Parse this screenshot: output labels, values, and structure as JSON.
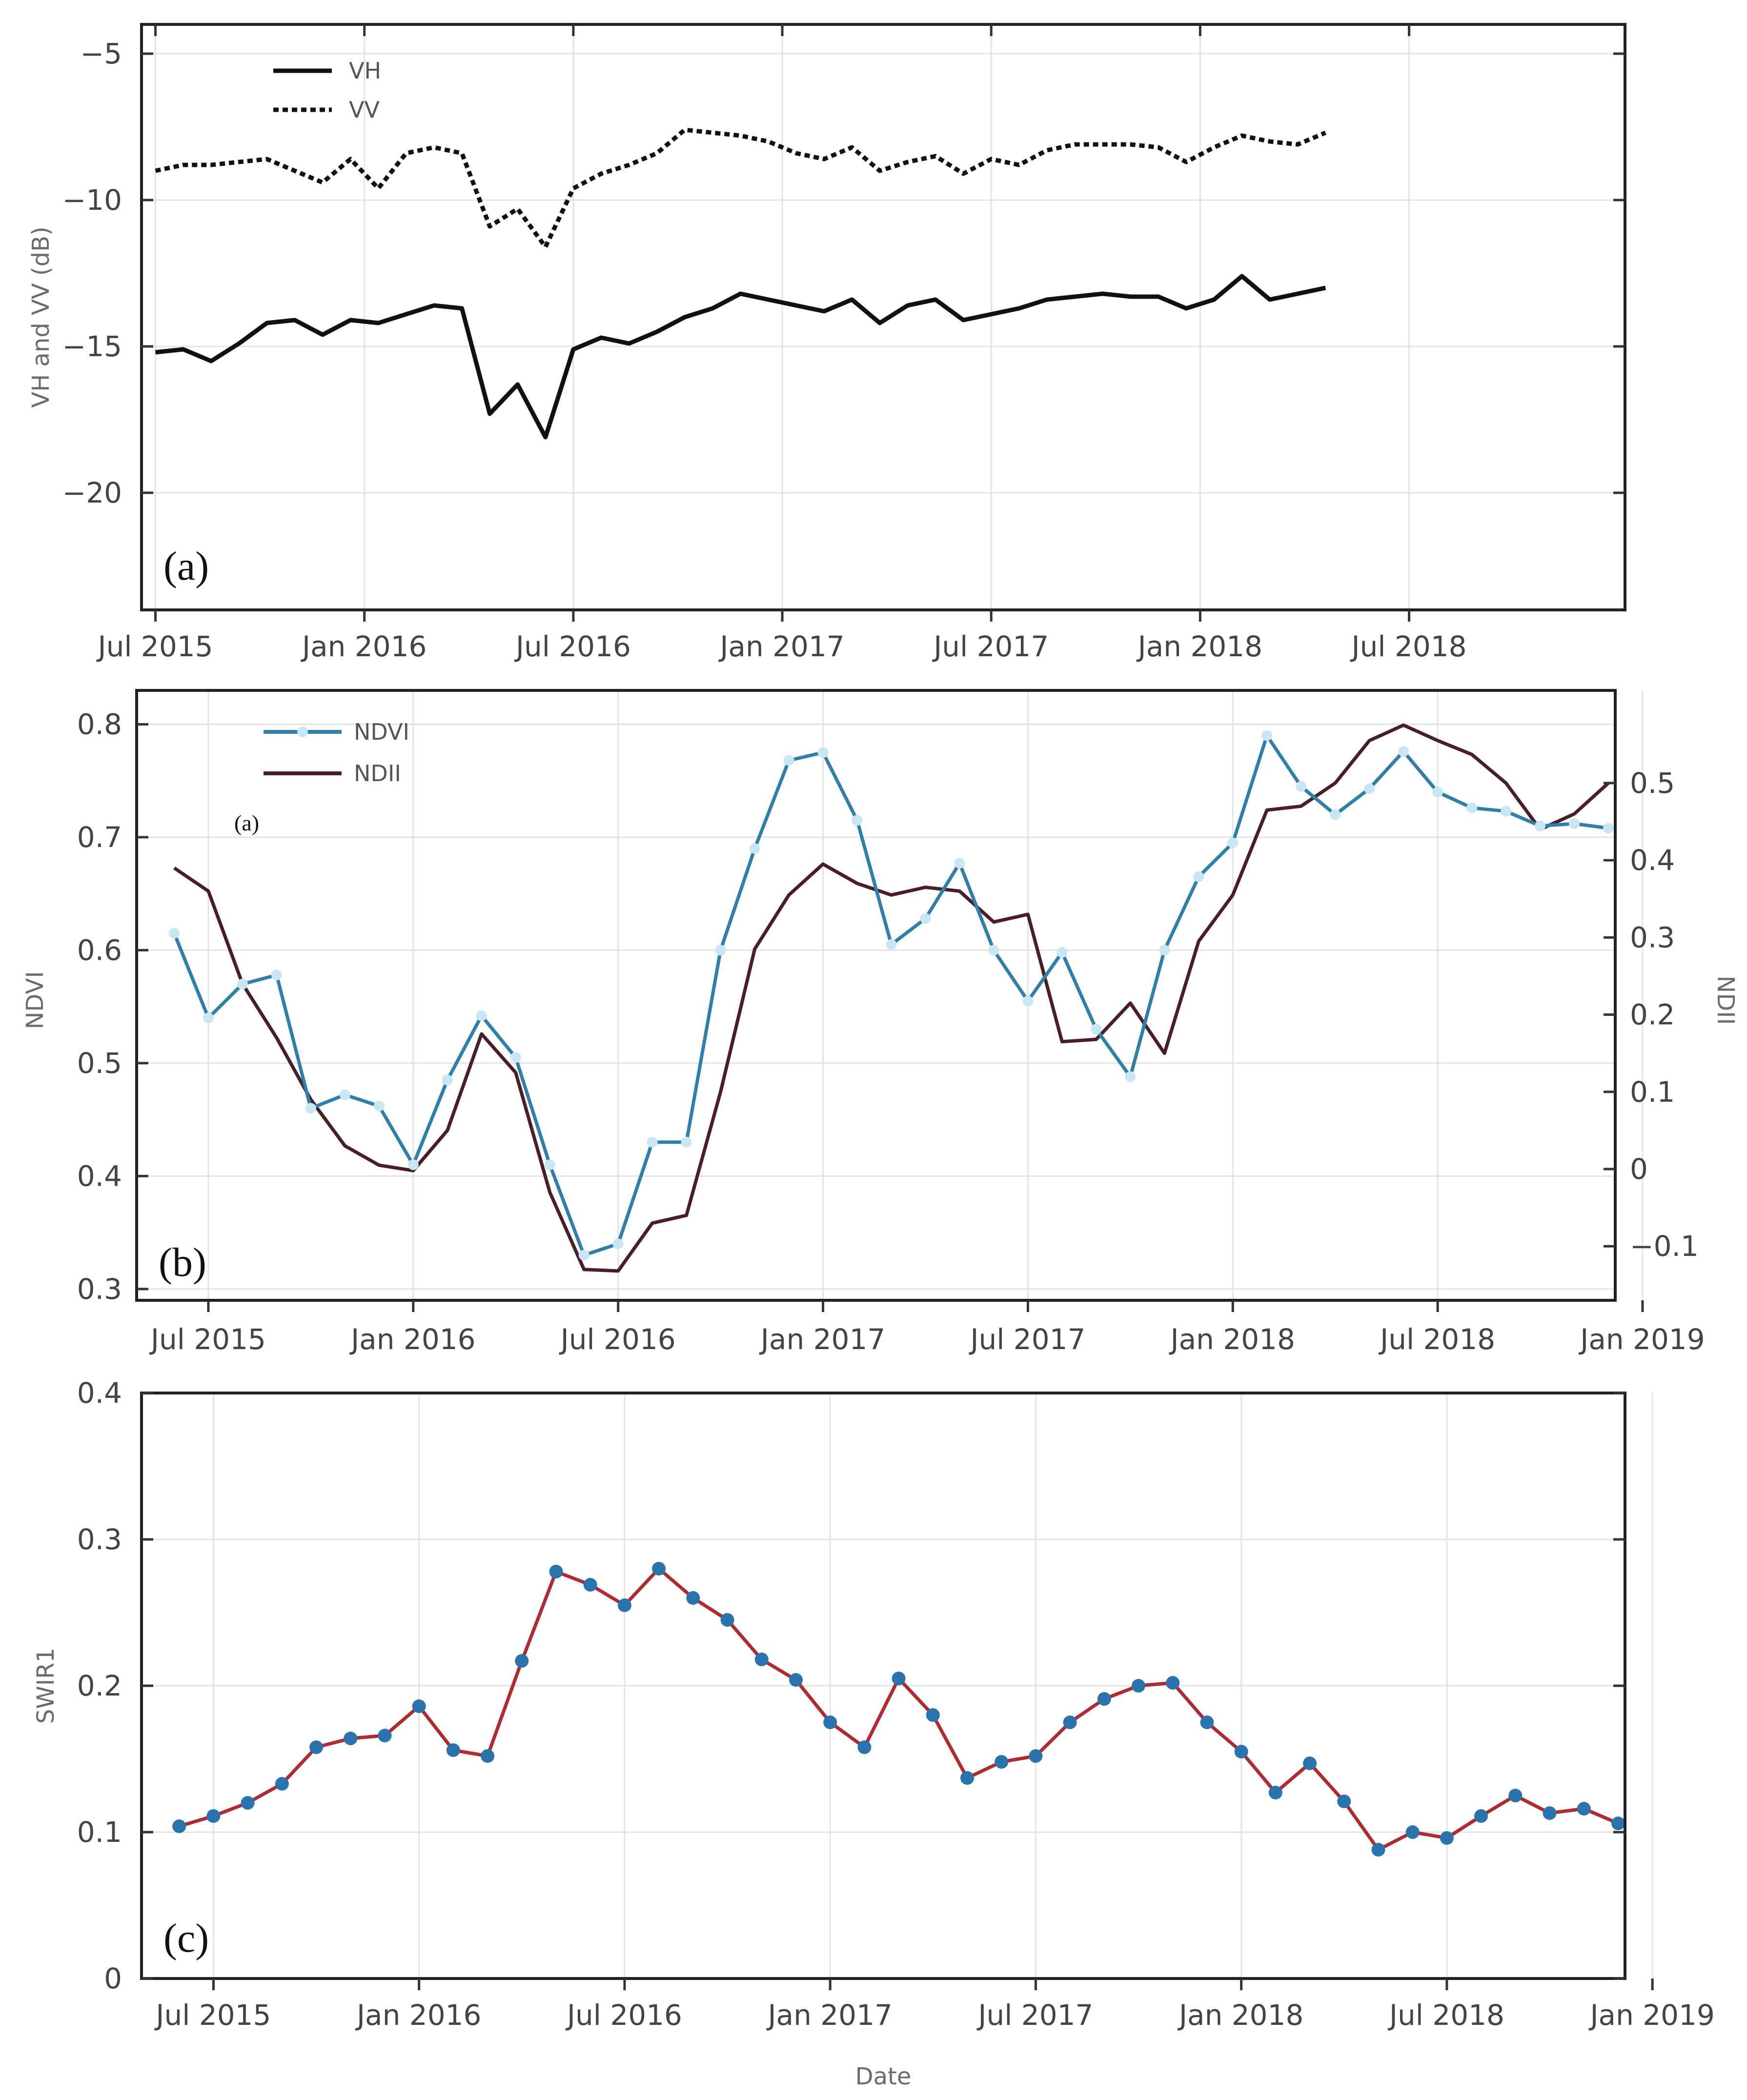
{
  "chart_data": [
    {
      "id": "a",
      "type": "line",
      "panel_label": "(a)",
      "ylabel": "VH and VV (dB)",
      "xlabel": "",
      "ylim": [
        -24,
        -4
      ],
      "yticks": [
        -5,
        -10,
        -15,
        -20
      ],
      "ytick_labels": [
        "−5",
        "−10",
        "−15",
        "−20"
      ],
      "xticks": [
        "Jul 2015",
        "Jan 2016",
        "Jul 2016",
        "Jan 2017",
        "Jul 2017",
        "Jan 2018",
        "Jul 2018"
      ],
      "x_start_month": 0,
      "x_end_month": 42.2,
      "x_step_months": 0.8,
      "legend_position": "top-left",
      "series": [
        {
          "name": "VH",
          "style": "solid",
          "color": "#111111",
          "values": [
            -15.2,
            -15.1,
            -15.5,
            -14.9,
            -14.2,
            -14.1,
            -14.6,
            -14.1,
            -14.2,
            -13.9,
            -13.6,
            -13.7,
            -17.3,
            -16.3,
            -18.1,
            -15.1,
            -14.7,
            -14.9,
            -14.5,
            -14.0,
            -13.7,
            -13.2,
            -13.4,
            -13.6,
            -13.8,
            -13.4,
            -14.2,
            -13.6,
            -13.4,
            -14.1,
            -13.9,
            -13.7,
            -13.4,
            -13.3,
            -13.2,
            -13.3,
            -13.3,
            -13.7,
            -13.4,
            -12.6,
            -13.4,
            -13.2,
            -13.0
          ]
        },
        {
          "name": "VV",
          "style": "dotted",
          "color": "#111111",
          "values": [
            -9.0,
            -8.8,
            -8.8,
            -8.7,
            -8.6,
            -9.0,
            -9.4,
            -8.6,
            -9.6,
            -8.4,
            -8.2,
            -8.4,
            -10.9,
            -10.3,
            -11.6,
            -9.6,
            -9.1,
            -8.8,
            -8.4,
            -7.6,
            -7.7,
            -7.8,
            -8.0,
            -8.4,
            -8.6,
            -8.2,
            -9.0,
            -8.7,
            -8.5,
            -9.1,
            -8.6,
            -8.8,
            -8.3,
            -8.1,
            -8.1,
            -8.1,
            -8.2,
            -8.7,
            -8.2,
            -7.8,
            -8.0,
            -8.1,
            -7.7
          ]
        }
      ]
    },
    {
      "id": "b",
      "type": "line",
      "panel_label": "(b)",
      "annotation": "(a)",
      "ylabel": "NDVI",
      "y2label": "NDII",
      "xlabel": "",
      "ylim": [
        0.29,
        0.83
      ],
      "y2lim": [
        -0.17,
        0.62
      ],
      "yticks": [
        0.3,
        0.4,
        0.5,
        0.6,
        0.7,
        0.8
      ],
      "ytick_labels": [
        "0.3",
        "0.4",
        "0.5",
        "0.6",
        "0.7",
        "0.8"
      ],
      "y2ticks": [
        -0.1,
        0,
        0.1,
        0.2,
        0.3,
        0.4,
        0.5
      ],
      "y2tick_labels": [
        "−0.1",
        "0",
        "0.1",
        "0.2",
        "0.3",
        "0.4",
        "0.5"
      ],
      "xticks": [
        "Jul 2015",
        "Jan 2016",
        "Jul 2016",
        "Jan 2017",
        "Jul 2017",
        "Jan 2018",
        "Jul 2018",
        "Jan 2019"
      ],
      "x_start_month": -1,
      "x_end_month": 41,
      "legend_position": "top-left",
      "series": [
        {
          "name": "NDVI",
          "axis": "left",
          "color": "#2f7fa8",
          "marker_color": "#c8e6f4",
          "values": [
            0.615,
            0.54,
            0.57,
            0.578,
            0.46,
            0.472,
            0.462,
            0.41,
            0.485,
            0.542,
            0.505,
            0.41,
            0.33,
            0.34,
            0.43,
            0.43,
            0.6,
            0.69,
            0.768,
            0.775,
            0.715,
            0.605,
            0.628,
            0.677,
            0.6,
            0.555,
            0.598,
            0.53,
            0.488,
            0.6,
            0.665,
            0.695,
            0.79,
            0.745,
            0.72,
            0.743,
            0.776,
            0.74,
            0.726,
            0.723,
            0.71,
            0.712,
            0.708
          ]
        },
        {
          "name": "NDII",
          "axis": "right",
          "color": "#4a1e26",
          "values": [
            0.39,
            0.36,
            0.24,
            0.17,
            0.09,
            0.03,
            0.005,
            -0.002,
            0.05,
            0.175,
            0.125,
            -0.03,
            -0.13,
            -0.132,
            -0.07,
            -0.06,
            0.1,
            0.285,
            0.355,
            0.395,
            0.37,
            0.355,
            0.365,
            0.36,
            0.32,
            0.33,
            0.165,
            0.168,
            0.215,
            0.15,
            0.295,
            0.355,
            0.465,
            0.47,
            0.5,
            0.555,
            0.575,
            0.555,
            0.537,
            0.5,
            0.44,
            0.46,
            0.5
          ]
        }
      ]
    },
    {
      "id": "c",
      "type": "line",
      "panel_label": "(c)",
      "ylabel": "SWIR1",
      "xlabel": "Date",
      "ylim": [
        0,
        0.4
      ],
      "yticks": [
        0,
        0.1,
        0.2,
        0.3,
        0.4
      ],
      "ytick_labels": [
        "0",
        "0.1",
        "0.2",
        "0.3",
        "0.4"
      ],
      "xticks": [
        "Jul 2015",
        "Jan 2016",
        "Jul 2016",
        "Jan 2017",
        "Jul 2017",
        "Jan 2018",
        "Jul 2018",
        "Jan 2019"
      ],
      "x_start_month": -1,
      "x_end_month": 41,
      "series": [
        {
          "name": "SWIR1",
          "color": "#b02a31",
          "marker_color": "#2a73ad",
          "values": [
            0.104,
            0.111,
            0.12,
            0.133,
            0.158,
            0.164,
            0.166,
            0.186,
            0.156,
            0.152,
            0.217,
            0.278,
            0.269,
            0.255,
            0.28,
            0.26,
            0.245,
            0.218,
            0.204,
            0.175,
            0.158,
            0.205,
            0.18,
            0.137,
            0.148,
            0.152,
            0.175,
            0.191,
            0.2,
            0.202,
            0.175,
            0.155,
            0.127,
            0.147,
            0.121,
            0.088,
            0.1,
            0.096,
            0.111,
            0.125,
            0.113,
            0.116,
            0.106
          ]
        }
      ]
    }
  ]
}
